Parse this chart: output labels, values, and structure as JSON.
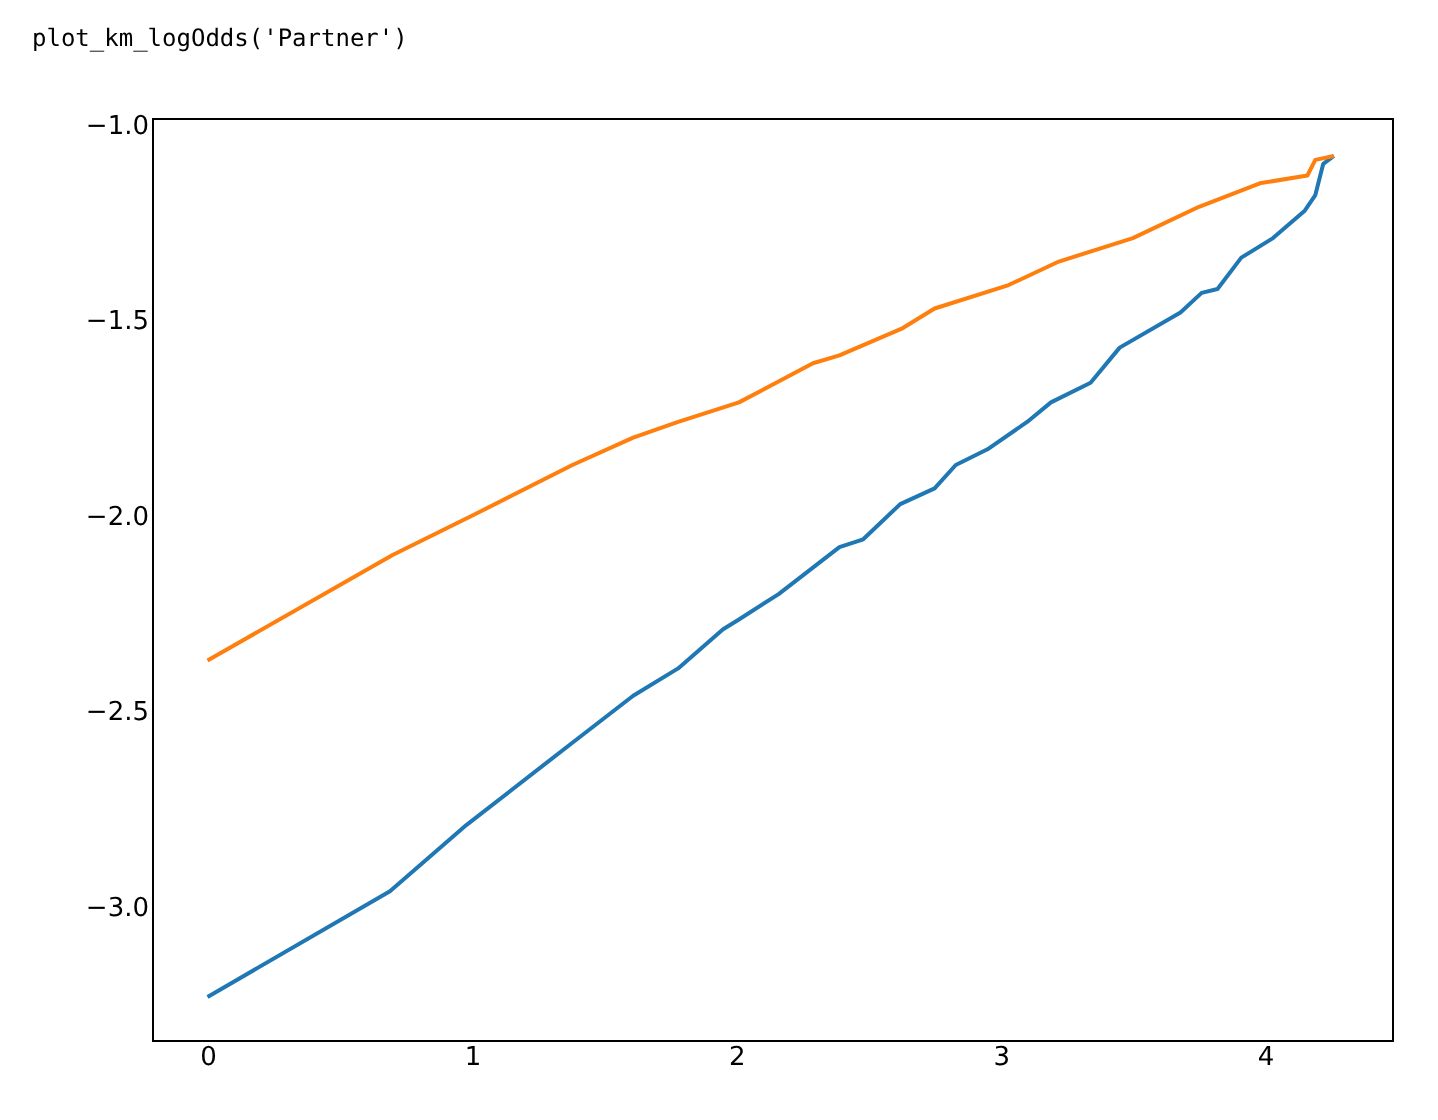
{
  "chart_data": {
    "type": "line",
    "annotations": [
      "plot_km_logOdds('Partner')"
    ],
    "xlim": [
      -0.21,
      4.48
    ],
    "xticks": [
      0,
      1,
      2,
      3,
      4
    ],
    "ylim": [
      -3.34,
      -0.983
    ],
    "yticks": [
      {
        "value": -3.0,
        "label": "−3.0"
      },
      {
        "value": -2.5,
        "label": "−2.5"
      },
      {
        "value": -2.0,
        "label": "−2.0"
      },
      {
        "value": -1.5,
        "label": "−1.5"
      },
      {
        "value": -1.0,
        "label": "−1.0"
      }
    ],
    "grid": false,
    "marker": "none",
    "line_style": "solid",
    "series": [
      {
        "color": "#1f77b4",
        "x": [
          0,
          0.69,
          0.98,
          1.38,
          1.61,
          1.78,
          1.95,
          2.01,
          2.16,
          2.39,
          2.48,
          2.62,
          2.75,
          2.83,
          2.95,
          3.1,
          3.19,
          3.34,
          3.45,
          3.68,
          3.76,
          3.82,
          3.91,
          4.03,
          4.15,
          4.19,
          4.22,
          4.26
        ],
        "values": [
          -3.23,
          -2.96,
          -2.79,
          -2.58,
          -2.46,
          -2.39,
          -2.29,
          -2.265,
          -2.2,
          -2.08,
          -2.06,
          -1.97,
          -1.93,
          -1.87,
          -1.83,
          -1.76,
          -1.71,
          -1.66,
          -1.57,
          -1.48,
          -1.43,
          -1.42,
          -1.34,
          -1.29,
          -1.22,
          -1.18,
          -1.1,
          -1.08
        ]
      },
      {
        "color": "#ff7f0e",
        "x": [
          0,
          0.7,
          1.0,
          1.38,
          1.61,
          1.78,
          2.01,
          2.29,
          2.39,
          2.63,
          2.75,
          3.03,
          3.22,
          3.5,
          3.75,
          3.98,
          4.16,
          4.19,
          4.26
        ],
        "values": [
          -2.37,
          -2.1,
          -2.0,
          -1.87,
          -1.8,
          -1.76,
          -1.71,
          -1.61,
          -1.59,
          -1.52,
          -1.47,
          -1.41,
          -1.35,
          -1.29,
          -1.21,
          -1.15,
          -1.13,
          -1.09,
          -1.08
        ]
      }
    ]
  }
}
